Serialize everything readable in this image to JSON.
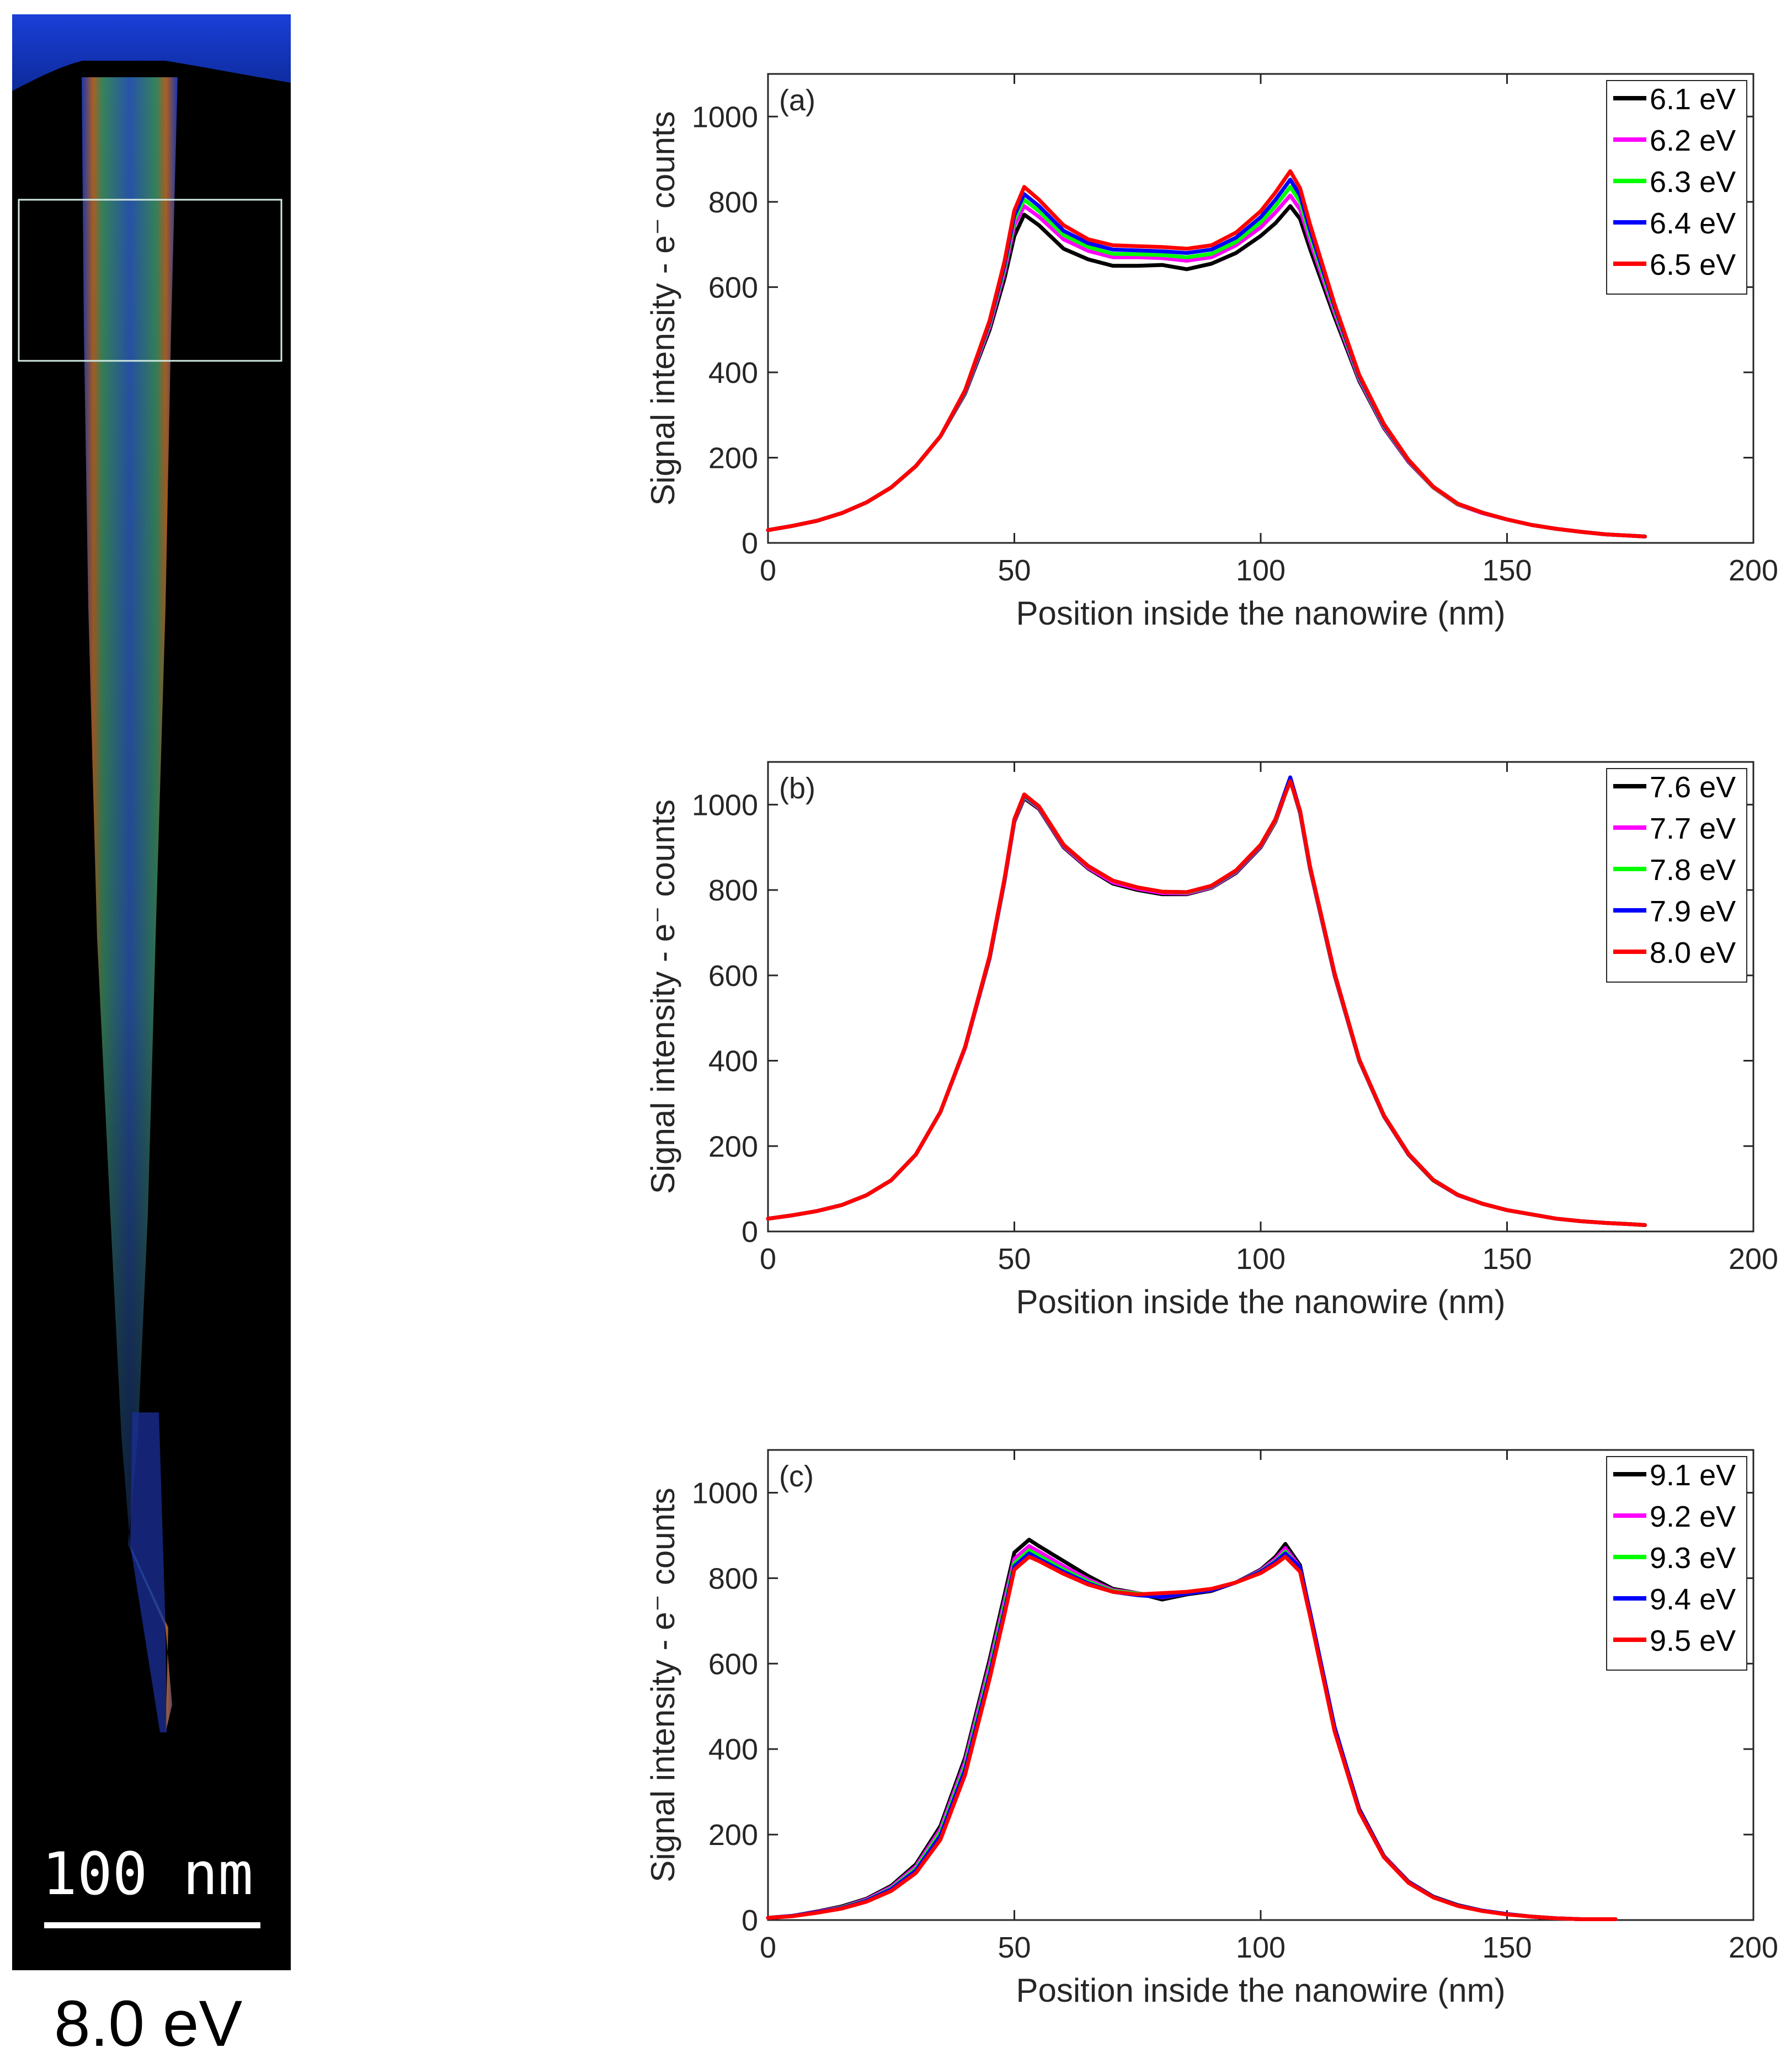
{
  "micrograph": {
    "scale_bar_label": "100 nm",
    "energy_label": "8.0 eV"
  },
  "colors": {
    "series": [
      "#000000",
      "#ff00ff",
      "#00ff00",
      "#0000ff",
      "#ff0000"
    ]
  },
  "chart_data": [
    {
      "type": "line",
      "panel_label": "(a)",
      "xlabel": "Position inside the nanowire (nm)",
      "ylabel": "Signal intensity - e⁻ counts",
      "xlim": [
        0,
        200
      ],
      "ylim": [
        0,
        1100
      ],
      "xticks": [
        0,
        50,
        100,
        150,
        200
      ],
      "yticks": [
        0,
        200,
        400,
        600,
        800,
        1000
      ],
      "legend_position": "top-right",
      "x": [
        0,
        5,
        10,
        15,
        20,
        25,
        30,
        35,
        40,
        45,
        48,
        50,
        52,
        55,
        60,
        65,
        70,
        75,
        80,
        85,
        90,
        95,
        100,
        103,
        106,
        108,
        110,
        115,
        120,
        125,
        130,
        135,
        140,
        145,
        150,
        155,
        160,
        165,
        170,
        175,
        178
      ],
      "series": [
        {
          "name": "6.1 eV",
          "values": [
            30,
            40,
            52,
            70,
            95,
            130,
            180,
            250,
            350,
            500,
            620,
            720,
            770,
            745,
            690,
            665,
            650,
            650,
            652,
            642,
            655,
            680,
            720,
            750,
            790,
            760,
            690,
            530,
            380,
            270,
            190,
            130,
            90,
            70,
            55,
            42,
            33,
            26,
            20,
            17,
            15
          ]
        },
        {
          "name": "6.2 eV",
          "values": [
            30,
            40,
            52,
            70,
            95,
            130,
            180,
            250,
            352,
            508,
            635,
            745,
            790,
            765,
            712,
            685,
            670,
            670,
            668,
            662,
            670,
            698,
            740,
            775,
            815,
            782,
            708,
            540,
            384,
            272,
            191,
            130,
            90,
            70,
            55,
            42,
            33,
            26,
            20,
            17,
            15
          ]
        },
        {
          "name": "6.3 eV",
          "values": [
            30,
            40,
            52,
            70,
            95,
            130,
            180,
            250,
            354,
            514,
            645,
            758,
            805,
            778,
            722,
            694,
            678,
            677,
            675,
            670,
            678,
            706,
            752,
            790,
            835,
            800,
            722,
            548,
            388,
            275,
            193,
            131,
            91,
            71,
            55,
            42,
            33,
            26,
            20,
            17,
            15
          ]
        },
        {
          "name": "6.4 eV",
          "values": [
            30,
            40,
            52,
            70,
            95,
            130,
            180,
            250,
            356,
            518,
            652,
            768,
            818,
            790,
            732,
            703,
            688,
            686,
            684,
            680,
            688,
            716,
            764,
            805,
            852,
            815,
            734,
            554,
            391,
            277,
            194,
            132,
            92,
            71,
            55,
            42,
            33,
            26,
            20,
            17,
            15
          ]
        },
        {
          "name": "6.5 eV",
          "values": [
            30,
            40,
            52,
            70,
            95,
            130,
            180,
            250,
            358,
            522,
            660,
            780,
            835,
            805,
            745,
            712,
            698,
            696,
            694,
            690,
            698,
            728,
            778,
            822,
            872,
            832,
            748,
            560,
            394,
            279,
            195,
            132,
            92,
            71,
            55,
            42,
            33,
            26,
            20,
            17,
            15
          ]
        }
      ]
    },
    {
      "type": "line",
      "panel_label": "(b)",
      "xlabel": "Position inside the nanowire (nm)",
      "ylabel": "Signal intensity - e⁻ counts",
      "xlim": [
        0,
        200
      ],
      "ylim": [
        0,
        1100
      ],
      "xticks": [
        0,
        50,
        100,
        150,
        200
      ],
      "yticks": [
        0,
        200,
        400,
        600,
        800,
        1000
      ],
      "legend_position": "top-right",
      "x": [
        0,
        5,
        10,
        15,
        20,
        25,
        30,
        35,
        40,
        45,
        48,
        50,
        52,
        55,
        60,
        65,
        70,
        75,
        80,
        85,
        90,
        95,
        100,
        103,
        106,
        108,
        110,
        115,
        120,
        125,
        130,
        135,
        140,
        145,
        150,
        155,
        160,
        165,
        170,
        175,
        178
      ],
      "series": [
        {
          "name": "7.6 eV",
          "values": [
            30,
            38,
            48,
            62,
            85,
            120,
            180,
            280,
            430,
            640,
            820,
            960,
            1015,
            990,
            900,
            850,
            815,
            800,
            790,
            790,
            805,
            840,
            900,
            960,
            1058,
            980,
            850,
            600,
            400,
            270,
            180,
            120,
            85,
            65,
            50,
            40,
            30,
            24,
            20,
            17,
            15
          ]
        },
        {
          "name": "7.7 eV",
          "values": [
            30,
            38,
            48,
            62,
            85,
            120,
            180,
            280,
            430,
            642,
            822,
            962,
            1018,
            992,
            902,
            852,
            818,
            803,
            793,
            792,
            806,
            842,
            902,
            962,
            1060,
            982,
            852,
            602,
            401,
            271,
            181,
            121,
            85,
            65,
            50,
            40,
            30,
            24,
            20,
            17,
            15
          ]
        },
        {
          "name": "7.8 eV",
          "values": [
            30,
            38,
            48,
            62,
            85,
            120,
            180,
            280,
            432,
            644,
            824,
            964,
            1020,
            994,
            904,
            855,
            822,
            806,
            796,
            794,
            808,
            844,
            904,
            964,
            1062,
            984,
            854,
            604,
            402,
            272,
            182,
            121,
            86,
            65,
            50,
            40,
            30,
            24,
            20,
            17,
            15
          ]
        },
        {
          "name": "7.9 eV",
          "values": [
            30,
            38,
            48,
            62,
            85,
            120,
            180,
            280,
            432,
            645,
            825,
            965,
            1022,
            995,
            905,
            856,
            822,
            806,
            796,
            795,
            809,
            845,
            905,
            966,
            1064,
            985,
            855,
            605,
            403,
            272,
            182,
            121,
            86,
            65,
            50,
            40,
            30,
            24,
            20,
            17,
            15
          ]
        },
        {
          "name": "8.0 eV",
          "values": [
            30,
            38,
            48,
            62,
            85,
            120,
            180,
            280,
            432,
            646,
            826,
            966,
            1024,
            996,
            906,
            856,
            822,
            806,
            796,
            795,
            810,
            846,
            906,
            966,
            1055,
            986,
            856,
            605,
            403,
            272,
            182,
            121,
            86,
            65,
            50,
            40,
            30,
            24,
            20,
            17,
            15
          ]
        }
      ]
    },
    {
      "type": "line",
      "panel_label": "(c)",
      "xlabel": "Position inside the nanowire (nm)",
      "ylabel": "Signal intensity - e⁻ counts",
      "xlim": [
        0,
        200
      ],
      "ylim": [
        0,
        1100
      ],
      "xticks": [
        0,
        50,
        100,
        150,
        200
      ],
      "yticks": [
        0,
        200,
        400,
        600,
        800,
        1000
      ],
      "legend_position": "top-right",
      "x": [
        0,
        5,
        10,
        15,
        20,
        25,
        30,
        35,
        40,
        45,
        48,
        50,
        53,
        55,
        60,
        65,
        70,
        75,
        80,
        85,
        90,
        95,
        100,
        103,
        105,
        108,
        110,
        115,
        120,
        125,
        130,
        135,
        140,
        145,
        150,
        155,
        160,
        165,
        170,
        172
      ],
      "series": [
        {
          "name": "9.1 eV",
          "values": [
            5,
            10,
            20,
            32,
            50,
            80,
            130,
            220,
            380,
            610,
            760,
            860,
            890,
            875,
            840,
            805,
            775,
            765,
            750,
            762,
            770,
            790,
            820,
            850,
            880,
            830,
            720,
            450,
            260,
            150,
            90,
            55,
            35,
            22,
            14,
            8,
            4,
            2,
            2,
            2
          ]
        },
        {
          "name": "9.2 eV",
          "values": [
            5,
            10,
            19,
            30,
            48,
            77,
            125,
            212,
            370,
            598,
            746,
            845,
            875,
            862,
            828,
            797,
            772,
            765,
            755,
            764,
            772,
            790,
            818,
            845,
            870,
            825,
            718,
            448,
            258,
            149,
            89,
            54,
            34,
            22,
            14,
            8,
            4,
            2,
            2,
            2
          ]
        },
        {
          "name": "9.3 eV",
          "values": [
            5,
            10,
            18,
            29,
            46,
            74,
            120,
            205,
            360,
            586,
            735,
            835,
            865,
            852,
            820,
            792,
            770,
            764,
            758,
            765,
            773,
            790,
            816,
            840,
            862,
            822,
            716,
            446,
            256,
            148,
            88,
            54,
            34,
            22,
            14,
            8,
            4,
            2,
            2,
            2
          ]
        },
        {
          "name": "9.4 eV",
          "values": [
            5,
            10,
            18,
            28,
            45,
            72,
            116,
            198,
            352,
            576,
            725,
            828,
            858,
            845,
            815,
            788,
            768,
            760,
            756,
            764,
            772,
            790,
            815,
            838,
            858,
            825,
            722,
            452,
            258,
            148,
            88,
            54,
            34,
            22,
            14,
            8,
            4,
            2,
            2,
            2
          ]
        },
        {
          "name": "9.5 eV",
          "values": [
            5,
            9,
            17,
            27,
            43,
            68,
            110,
            188,
            340,
            565,
            715,
            820,
            850,
            840,
            810,
            785,
            768,
            762,
            765,
            768,
            775,
            790,
            812,
            833,
            850,
            815,
            712,
            442,
            254,
            147,
            87,
            53,
            33,
            21,
            13,
            8,
            4,
            2,
            2,
            2
          ]
        }
      ]
    }
  ]
}
